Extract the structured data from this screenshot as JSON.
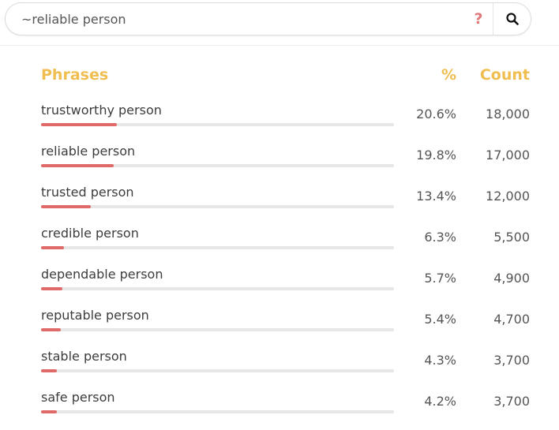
{
  "search": {
    "value": "~reliable person",
    "help_icon": "question-mark",
    "button_icon": "magnifier-icon"
  },
  "table": {
    "headers": {
      "phrases": "Phrases",
      "percent": "%",
      "count": "Count"
    },
    "rows": [
      {
        "phrase": "trustworthy person",
        "percent": "20.6%",
        "count": "18,000",
        "share": 0.206
      },
      {
        "phrase": "reliable person",
        "percent": "19.8%",
        "count": "17,000",
        "share": 0.198
      },
      {
        "phrase": "trusted person",
        "percent": "13.4%",
        "count": "12,000",
        "share": 0.134
      },
      {
        "phrase": "credible person",
        "percent": "6.3%",
        "count": "5,500",
        "share": 0.063
      },
      {
        "phrase": "dependable person",
        "percent": "5.7%",
        "count": "4,900",
        "share": 0.057
      },
      {
        "phrase": "reputable person",
        "percent": "5.4%",
        "count": "4,700",
        "share": 0.054
      },
      {
        "phrase": "stable person",
        "percent": "4.3%",
        "count": "3,700",
        "share": 0.043
      },
      {
        "phrase": "safe person",
        "percent": "4.2%",
        "count": "3,700",
        "share": 0.042
      }
    ]
  },
  "colors": {
    "header": "#f0be50",
    "bar_fill": "#e06a6a",
    "bar_track": "#e7e7e7",
    "help_icon": "#e07a7a"
  }
}
